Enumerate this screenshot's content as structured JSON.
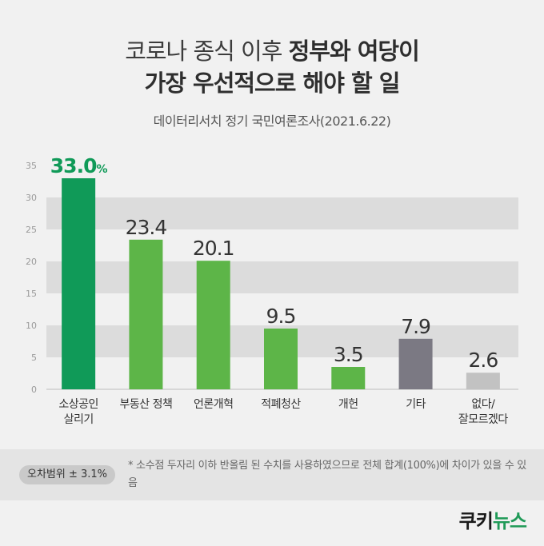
{
  "header": {
    "title_line1_normal": "코로나 종식 이후 ",
    "title_line1_bold": "정부와 여당이",
    "title_line2": "가장 우선적으로 해야 할 일",
    "subtitle": "데이터리서치 정기 국민여론조사(2021.6.22)"
  },
  "chart_data": {
    "type": "bar",
    "categories": [
      "소상공인\n살리기",
      "부동산 정책",
      "언론개혁",
      "적폐청산",
      "개헌",
      "기타",
      "없다/\n잘모르겠다"
    ],
    "values": [
      33.0,
      23.4,
      20.1,
      9.5,
      3.5,
      7.9,
      2.6
    ],
    "value_labels": [
      "33.0",
      "23.4",
      "20.1",
      "9.5",
      "3.5",
      "7.9",
      "2.6"
    ],
    "first_label_suffix": "%",
    "bar_colors": [
      "#109a58",
      "#5db548",
      "#5db548",
      "#5db548",
      "#5db548",
      "#7b7983",
      "#c2c2c2"
    ],
    "highlight_label_color": "#109a58",
    "label_color": "#333333",
    "ylim": [
      0,
      35
    ],
    "yticks": [
      0,
      5,
      10,
      15,
      20,
      25,
      30,
      35
    ],
    "grid": "alternating horizontal bands",
    "band_color": "#dcdcdc",
    "title": "",
    "xlabel": "",
    "ylabel": ""
  },
  "note": {
    "error_margin": "오차범위 ± 3.1%",
    "footnote": "* 소수점 두자리 이하 반올림 된 수치를 사용하였으므로 전체 합계(100%)에 차이가 있을 수 있음"
  },
  "brand": {
    "name_part1": "쿠키",
    "name_part2": "뉴스"
  }
}
